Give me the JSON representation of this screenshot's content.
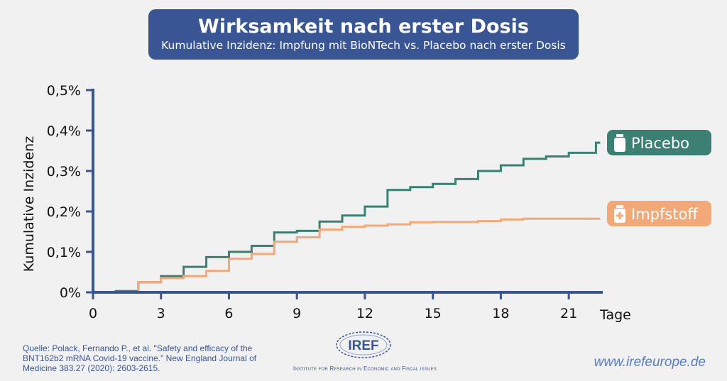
{
  "header": {
    "title": "Wirksamkeit nach erster Dosis",
    "subtitle": "Kumulative Inzidenz: Impfung mit BioNTech vs. Placebo nach erster Dosis"
  },
  "colors": {
    "title_bg": "#3a5593",
    "axis": "#3a5593",
    "placebo": "#3b8073",
    "impfstoff": "#f2a877",
    "text_blue": "#3a5593",
    "website": "#5a7cc4"
  },
  "chart_data": {
    "type": "line",
    "title": "Wirksamkeit nach erster Dosis",
    "subtitle": "Kumulative Inzidenz: Impfung mit BioNTech vs. Placebo nach erster Dosis",
    "xlabel": "Tage",
    "ylabel": "Kumulative Inzidenz",
    "xlim": [
      0,
      22.5
    ],
    "ylim": [
      0,
      0.5
    ],
    "x_ticks": [
      0,
      3,
      6,
      9,
      12,
      15,
      18,
      21
    ],
    "x_tick_labels": [
      "0",
      "3",
      "6",
      "9",
      "12",
      "15",
      "18",
      "21"
    ],
    "y_ticks": [
      0,
      0.1,
      0.2,
      0.3,
      0.4,
      0.5
    ],
    "y_tick_labels": [
      "0%",
      "0,1%",
      "0,2%",
      "0,3%",
      "0,4%",
      "0,5%"
    ],
    "step": true,
    "series": [
      {
        "name": "Placebo",
        "color": "#3b8073",
        "x": [
          0,
          1,
          2,
          3,
          4,
          5,
          6,
          7,
          8,
          9,
          10,
          11,
          12,
          13,
          14,
          15,
          16,
          17,
          18,
          19,
          20,
          21,
          22.2
        ],
        "y": [
          0,
          0.003,
          0.025,
          0.04,
          0.063,
          0.087,
          0.1,
          0.115,
          0.148,
          0.152,
          0.175,
          0.19,
          0.212,
          0.253,
          0.26,
          0.268,
          0.28,
          0.3,
          0.314,
          0.33,
          0.336,
          0.345,
          0.37
        ]
      },
      {
        "name": "Impfstoff",
        "color": "#f2a877",
        "x": [
          0,
          1.2,
          2,
          3,
          4,
          5,
          6,
          7,
          8,
          9,
          10,
          11,
          12,
          13,
          14,
          15,
          16,
          17,
          18,
          19,
          20,
          21,
          22.2
        ],
        "y": [
          0,
          0,
          0.025,
          0.035,
          0.04,
          0.053,
          0.083,
          0.095,
          0.125,
          0.136,
          0.155,
          0.162,
          0.165,
          0.168,
          0.173,
          0.174,
          0.174,
          0.176,
          0.18,
          0.182,
          0.182,
          0.182,
          0.182
        ]
      }
    ]
  },
  "source": "Quelle: Polack, Fernando P., et al. \"Safety and efficacy of the BNT162b2 mRNA Covid-19 vaccine.\" New England Journal of Medicine 383.27 (2020): 2603-2615.",
  "logo_text": "IREF",
  "institute": "Institute for Research in Economic and Fiscal issues",
  "website": "www.irefeurope.de"
}
